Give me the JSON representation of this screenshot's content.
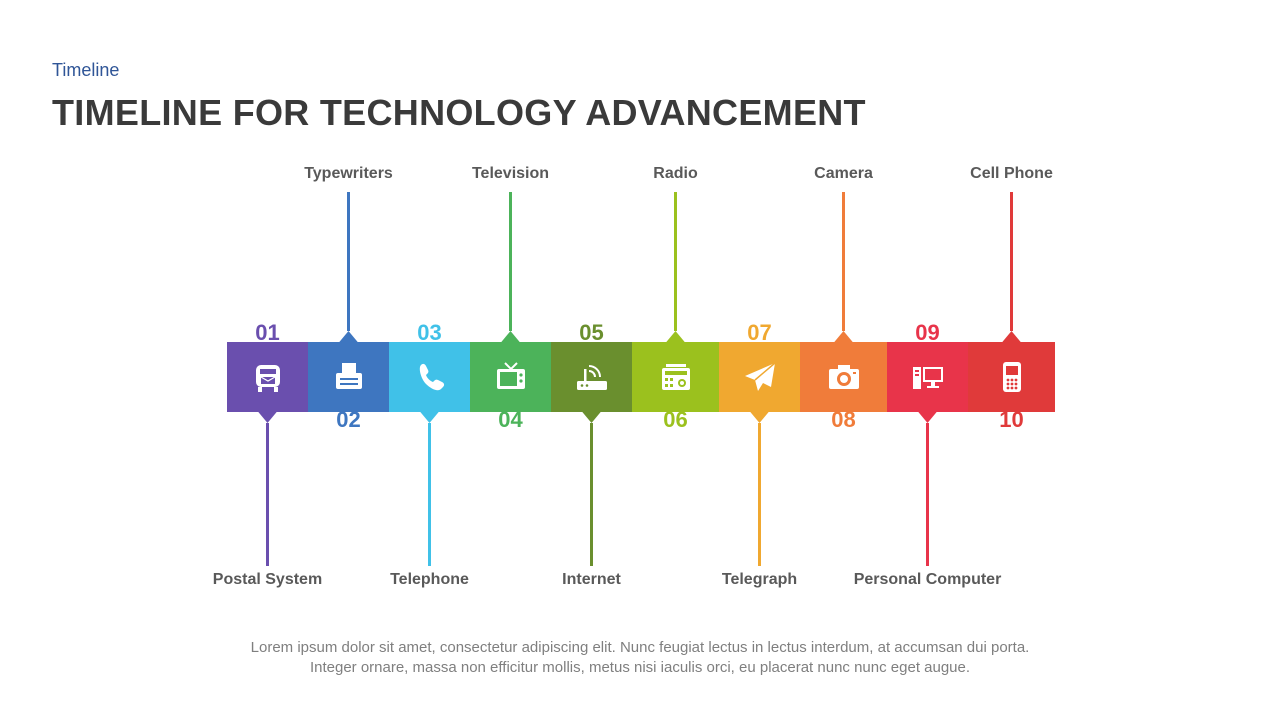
{
  "header": {
    "subtitle": "Timeline",
    "title": "TIMELINE FOR TECHNOLOGY ADVANCEMENT"
  },
  "steps": [
    {
      "number": "01",
      "label": "Postal System",
      "position": "bottom",
      "color": "#6a4fae",
      "icon": "mailbox-icon"
    },
    {
      "number": "02",
      "label": "Typewriters",
      "position": "top",
      "color": "#3e76c0",
      "icon": "typewriter-icon"
    },
    {
      "number": "03",
      "label": "Telephone",
      "position": "bottom",
      "color": "#40c1e8",
      "icon": "phone-icon"
    },
    {
      "number": "04",
      "label": "Television",
      "position": "top",
      "color": "#4cb35a",
      "icon": "tv-icon"
    },
    {
      "number": "05",
      "label": "Internet",
      "position": "bottom",
      "color": "#6a8f2e",
      "icon": "router-icon"
    },
    {
      "number": "06",
      "label": "Radio",
      "position": "top",
      "color": "#9bc11e",
      "icon": "radio-icon"
    },
    {
      "number": "07",
      "label": "Telegraph",
      "position": "bottom",
      "color": "#f0a830",
      "icon": "paper-plane-icon"
    },
    {
      "number": "08",
      "label": "Camera",
      "position": "top",
      "color": "#f07c3a",
      "icon": "camera-icon"
    },
    {
      "number": "09",
      "label": "Personal Computer",
      "position": "bottom",
      "color": "#e8344a",
      "icon": "computer-icon"
    },
    {
      "number": "10",
      "label": "Cell Phone",
      "position": "top",
      "color": "#e03a3a",
      "icon": "cell-phone-icon"
    }
  ],
  "footer": {
    "line1": "Lorem ipsum dolor sit amet, consectetur adipiscing elit. Nunc feugiat lectus in lectus interdum, at accumsan dui porta.",
    "line2": "Integer ornare, massa non efficitur mollis, metus nisi iaculis orci, eu placerat nunc nunc eget augue."
  }
}
